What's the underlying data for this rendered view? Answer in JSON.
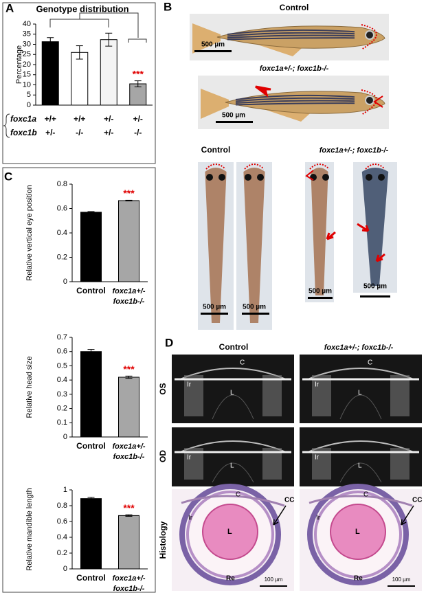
{
  "chart_data": [
    {
      "type": "bar",
      "title": "Genotype distribution",
      "y_label": "Percentage",
      "values": [
        31.3,
        26,
        32.3,
        10.5
      ],
      "errors": [
        2,
        3.3,
        3.2,
        1.5
      ],
      "value_annotations": [
        null,
        null,
        null,
        "***"
      ],
      "colors": [
        "#000000",
        "#ffffff",
        "#f4f4f4",
        "#a6a6a6"
      ],
      "ylim": [
        0,
        40
      ],
      "yticks": [
        0,
        5,
        10,
        15,
        20,
        25,
        30,
        35,
        40
      ]
    },
    {
      "type": "bar",
      "y_label": "Relative vertical eye position",
      "categories": [
        "Control",
        [
          "foxc1a+/-",
          "foxc1b-/-"
        ]
      ],
      "values": [
        0.57,
        0.665
      ],
      "errors": [
        0.005,
        0.003
      ],
      "value_annotations": [
        null,
        "***"
      ],
      "colors": [
        "#000000",
        "#a6a6a6"
      ],
      "ylim": [
        0,
        0.8
      ],
      "yticks": [
        0,
        0.2,
        0.4,
        0.6,
        0.8
      ]
    },
    {
      "type": "bar",
      "y_label": "Relative head size",
      "categories": [
        "Control",
        [
          "foxc1a+/-",
          "foxc1b-/-"
        ]
      ],
      "values": [
        0.6,
        0.42
      ],
      "errors": [
        0.015,
        0.008
      ],
      "value_annotations": [
        null,
        "***"
      ],
      "colors": [
        "#000000",
        "#a6a6a6"
      ],
      "ylim": [
        0,
        0.7
      ],
      "yticks": [
        0,
        0.1,
        0.2,
        0.3,
        0.4,
        0.5,
        0.6,
        0.7
      ]
    },
    {
      "type": "bar",
      "y_label": "Relative mandible length",
      "categories": [
        "Control",
        [
          "foxc1a+/-",
          "foxc1b-/-"
        ]
      ],
      "values": [
        0.89,
        0.675
      ],
      "errors": [
        0.015,
        0.01
      ],
      "value_annotations": [
        null,
        "***"
      ],
      "colors": [
        "#000000",
        "#a6a6a6"
      ],
      "ylim": [
        0,
        1
      ],
      "yticks": [
        0,
        0.2,
        0.4,
        0.6,
        0.8,
        1
      ]
    }
  ],
  "panels": {
    "a": "A",
    "b": "B",
    "c": "C",
    "d": "D"
  },
  "genotype_table": {
    "rows": [
      {
        "gene": "foxc1a",
        "values": [
          "+/+",
          "+/+",
          "+/-",
          "+/-"
        ]
      },
      {
        "gene": "foxc1b",
        "values": [
          "+/-",
          "-/-",
          "+/-",
          "-/-"
        ]
      }
    ]
  },
  "panel_b": {
    "top_title": "Control",
    "mutant_title": "foxc1a+/-; foxc1b-/-",
    "lower_control": "Control",
    "lower_mutant": "foxc1a+/-; foxc1b-/-",
    "scale_bar": "500 µm"
  },
  "panel_d": {
    "control": "Control",
    "mutant": "foxc1a+/-; foxc1b-/-",
    "rows": [
      "OS",
      "OD",
      "Histology"
    ],
    "oct_labels": [
      "C",
      "Ir",
      "L"
    ],
    "histology_labels": [
      "C",
      "Ir",
      "L",
      "CC",
      "Re"
    ],
    "scale_bar": "100 µm"
  }
}
